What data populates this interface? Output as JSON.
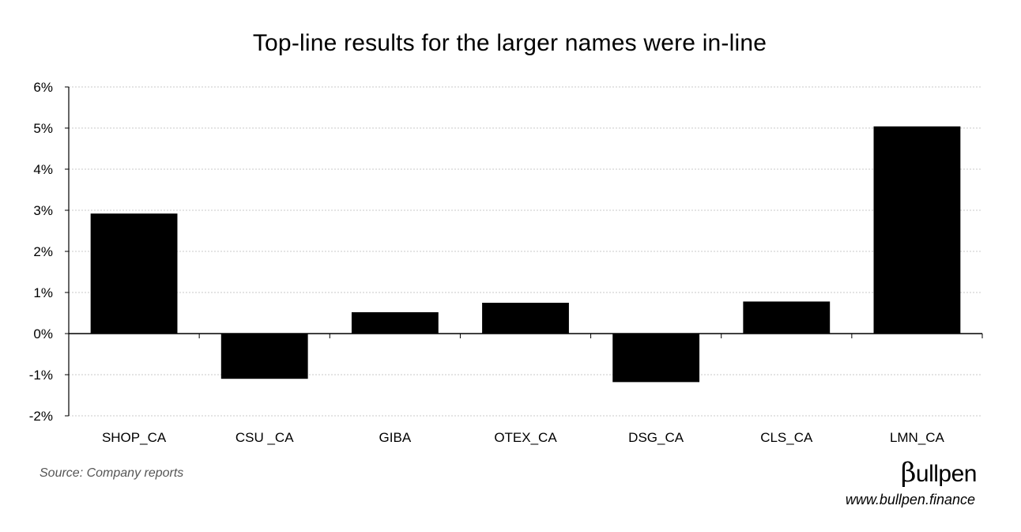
{
  "chart_data": {
    "type": "bar",
    "title": "Top-line results for the larger names were in-line",
    "xlabel": "",
    "ylabel": "",
    "categories": [
      "SHOP_CA",
      "CSU _CA",
      "GIBA",
      "OTEX_CA",
      "DSG_CA",
      "CLS_CA",
      "LMN_CA"
    ],
    "values": [
      2.92,
      -1.1,
      0.52,
      0.75,
      -1.18,
      0.78,
      5.04
    ],
    "ylim": [
      -2,
      6
    ],
    "yticks": [
      6,
      5,
      4,
      3,
      2,
      1,
      0,
      -1,
      -2
    ],
    "ytick_labels": [
      "6%",
      "5%",
      "4%",
      "3%",
      "2%",
      "1%",
      "0%",
      "-1%",
      "-2%"
    ],
    "grid": true,
    "legend": "none",
    "bar_color": "#000000",
    "grid_color": "#c8c8c8"
  },
  "footer": {
    "source": "Source: Company reports",
    "brand_symbol": "β",
    "brand_name": "ullpen",
    "brand_url": "www.bullpen.finance"
  }
}
